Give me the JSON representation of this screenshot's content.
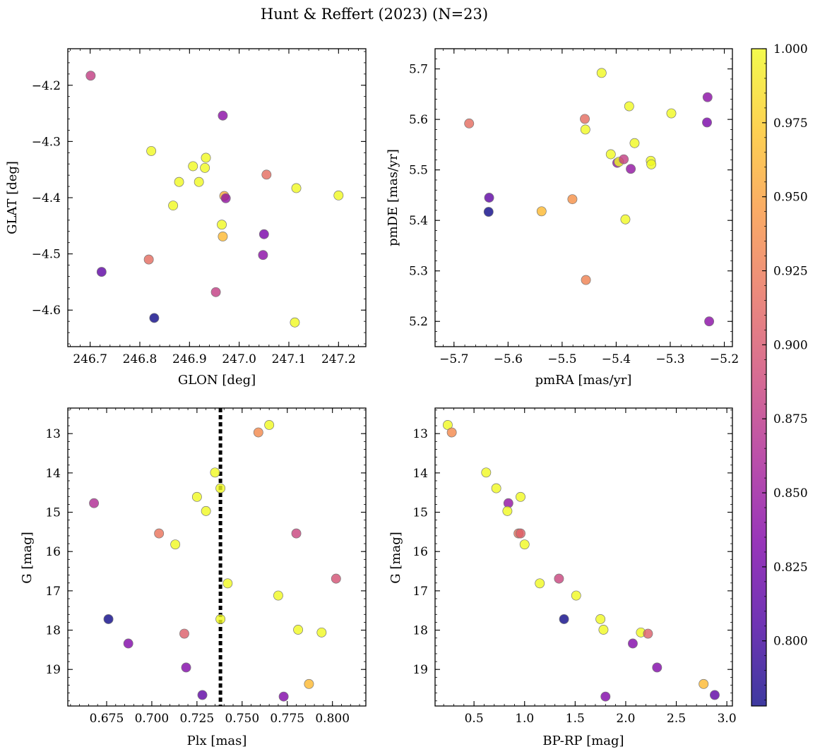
{
  "title": "Hunt & Reffert (2023) (N=23)",
  "colorbar": {
    "min": 0.778,
    "max": 1.0,
    "ticks": [
      "0.800",
      "0.825",
      "0.850",
      "0.875",
      "0.900",
      "0.925",
      "0.950",
      "0.975",
      "1.000"
    ],
    "tick_values": [
      0.8,
      0.825,
      0.85,
      0.875,
      0.9,
      0.925,
      0.95,
      0.975,
      1.0
    ],
    "colormap": "plasma"
  },
  "chart_data": [
    {
      "type": "scatter",
      "xlabel": "GLON [deg]",
      "ylabel": "GLAT [deg]",
      "xlim": [
        246.655,
        247.255
      ],
      "ylim": [
        -4.665,
        -4.135
      ],
      "xticks": [
        246.7,
        246.8,
        246.9,
        247.0,
        247.1,
        247.2
      ],
      "xticklabels": [
        "246.7",
        "246.8",
        "246.9",
        "247.0",
        "247.1",
        "247.2"
      ],
      "yticks": [
        -4.2,
        -4.3,
        -4.4,
        -4.5,
        -4.6
      ],
      "yticklabels": [
        "−4.2",
        "−4.3",
        "−4.4",
        "−4.5",
        "−4.6"
      ],
      "x": [
        246.701,
        246.967,
        246.823,
        246.933,
        246.907,
        246.931,
        246.879,
        246.919,
        247.055,
        246.97,
        246.973,
        247.115,
        247.2,
        246.867,
        246.965,
        246.967,
        247.05,
        247.048,
        246.818,
        246.723,
        246.953,
        246.829,
        247.112
      ],
      "y": [
        -4.183,
        -4.254,
        -4.317,
        -4.329,
        -4.344,
        -4.347,
        -4.372,
        -4.372,
        -4.359,
        -4.397,
        -4.401,
        -4.383,
        -4.396,
        -4.414,
        -4.448,
        -4.469,
        -4.465,
        -4.502,
        -4.51,
        -4.532,
        -4.568,
        -4.614,
        -4.622
      ],
      "c": [
        0.88,
        0.84,
        1.0,
        1.0,
        1.0,
        1.0,
        1.0,
        1.0,
        0.915,
        0.955,
        0.845,
        1.0,
        1.0,
        1.0,
        1.0,
        0.965,
        0.83,
        0.84,
        0.915,
        0.815,
        0.88,
        0.778,
        1.0
      ]
    },
    {
      "type": "scatter",
      "xlabel": "pmRA [mas/yr]",
      "ylabel": "pmDE [mas/yr]",
      "xlim": [
        -5.735,
        -5.185
      ],
      "ylim": [
        5.15,
        5.74
      ],
      "xticks": [
        -5.7,
        -5.6,
        -5.5,
        -5.4,
        -5.3,
        -5.2
      ],
      "xticklabels": [
        "−5.7",
        "−5.6",
        "−5.5",
        "−5.4",
        "−5.3",
        "−5.2"
      ],
      "yticks": [
        5.2,
        5.3,
        5.4,
        5.5,
        5.6,
        5.7
      ],
      "yticklabels": [
        "5.2",
        "5.3",
        "5.4",
        "5.5",
        "5.6",
        "5.7"
      ],
      "x": [
        -5.672,
        -5.635,
        -5.636,
        -5.538,
        -5.481,
        -5.458,
        -5.457,
        -5.456,
        -5.427,
        -5.41,
        -5.398,
        -5.395,
        -5.386,
        -5.383,
        -5.376,
        -5.373,
        -5.366,
        -5.336,
        -5.335,
        -5.298,
        -5.231,
        -5.232,
        -5.228
      ],
      "y": [
        5.592,
        5.445,
        5.417,
        5.418,
        5.442,
        5.601,
        5.58,
        5.282,
        5.692,
        5.531,
        5.514,
        5.516,
        5.521,
        5.402,
        5.626,
        5.502,
        5.553,
        5.518,
        5.511,
        5.612,
        5.644,
        5.594,
        5.2
      ],
      "c": [
        0.915,
        0.815,
        0.778,
        0.965,
        0.94,
        0.915,
        1.0,
        0.93,
        1.0,
        1.0,
        0.845,
        1.0,
        0.88,
        1.0,
        1.0,
        0.845,
        1.0,
        1.0,
        1.0,
        1.0,
        0.84,
        0.83,
        0.84
      ]
    },
    {
      "type": "scatter",
      "xlabel": "Plx [mas]",
      "ylabel": "G [mag]",
      "xlim": [
        0.6535,
        0.8185
      ],
      "ylim": [
        19.93,
        12.35
      ],
      "y_inverted": true,
      "xticks": [
        0.675,
        0.7,
        0.725,
        0.75,
        0.775,
        0.8
      ],
      "xticklabels": [
        "0.675",
        "0.700",
        "0.725",
        "0.750",
        "0.775",
        "0.800"
      ],
      "yticks": [
        13,
        14,
        15,
        16,
        17,
        18,
        19
      ],
      "yticklabels": [
        "13",
        "14",
        "15",
        "16",
        "17",
        "18",
        "19"
      ],
      "vline": 0.738,
      "x": [
        0.765,
        0.759,
        0.735,
        0.738,
        0.668,
        0.725,
        0.73,
        0.704,
        0.78,
        0.713,
        0.742,
        0.802,
        0.77,
        0.676,
        0.738,
        0.781,
        0.794,
        0.718,
        0.687,
        0.719,
        0.787,
        0.728,
        0.773
      ],
      "y": [
        12.78,
        12.97,
        13.99,
        14.39,
        14.77,
        14.61,
        14.97,
        15.54,
        15.54,
        15.82,
        16.81,
        16.69,
        17.12,
        17.72,
        17.72,
        17.99,
        18.06,
        18.09,
        18.34,
        18.95,
        19.37,
        19.65,
        19.69
      ],
      "c": [
        1.0,
        0.935,
        1.0,
        1.0,
        0.865,
        1.0,
        1.0,
        0.92,
        0.885,
        1.0,
        1.0,
        0.895,
        1.0,
        0.778,
        1.0,
        1.0,
        1.0,
        0.905,
        0.835,
        0.835,
        0.965,
        0.815,
        0.835
      ]
    },
    {
      "type": "scatter",
      "xlabel": "BP-RP [mag]",
      "ylabel": "G [mag]",
      "xlim": [
        0.115,
        3.055
      ],
      "ylim": [
        19.93,
        12.35
      ],
      "y_inverted": true,
      "xticks": [
        0.5,
        1.0,
        1.5,
        2.0,
        2.5,
        3.0
      ],
      "xticklabels": [
        "0.5",
        "1.0",
        "1.5",
        "2.0",
        "2.5",
        "3.0"
      ],
      "yticks": [
        13,
        14,
        15,
        16,
        17,
        18,
        19
      ],
      "yticklabels": [
        "13",
        "14",
        "15",
        "16",
        "17",
        "18",
        "19"
      ],
      "x": [
        0.24,
        0.28,
        0.62,
        0.72,
        0.84,
        0.96,
        0.83,
        0.94,
        0.96,
        1.0,
        1.15,
        1.34,
        1.51,
        1.39,
        1.75,
        1.78,
        2.15,
        2.22,
        2.07,
        2.31,
        2.77,
        2.88,
        1.8
      ],
      "y": [
        12.78,
        12.97,
        13.99,
        14.39,
        14.77,
        14.61,
        14.97,
        15.54,
        15.54,
        15.82,
        16.81,
        16.69,
        17.12,
        17.72,
        17.72,
        17.99,
        18.06,
        18.09,
        18.34,
        18.95,
        19.37,
        19.65,
        19.69
      ],
      "c": [
        1.0,
        0.935,
        1.0,
        1.0,
        0.845,
        1.0,
        1.0,
        0.92,
        0.905,
        1.0,
        1.0,
        0.885,
        1.0,
        0.778,
        1.0,
        1.0,
        1.0,
        0.905,
        0.835,
        0.835,
        0.965,
        0.815,
        0.835
      ]
    }
  ]
}
